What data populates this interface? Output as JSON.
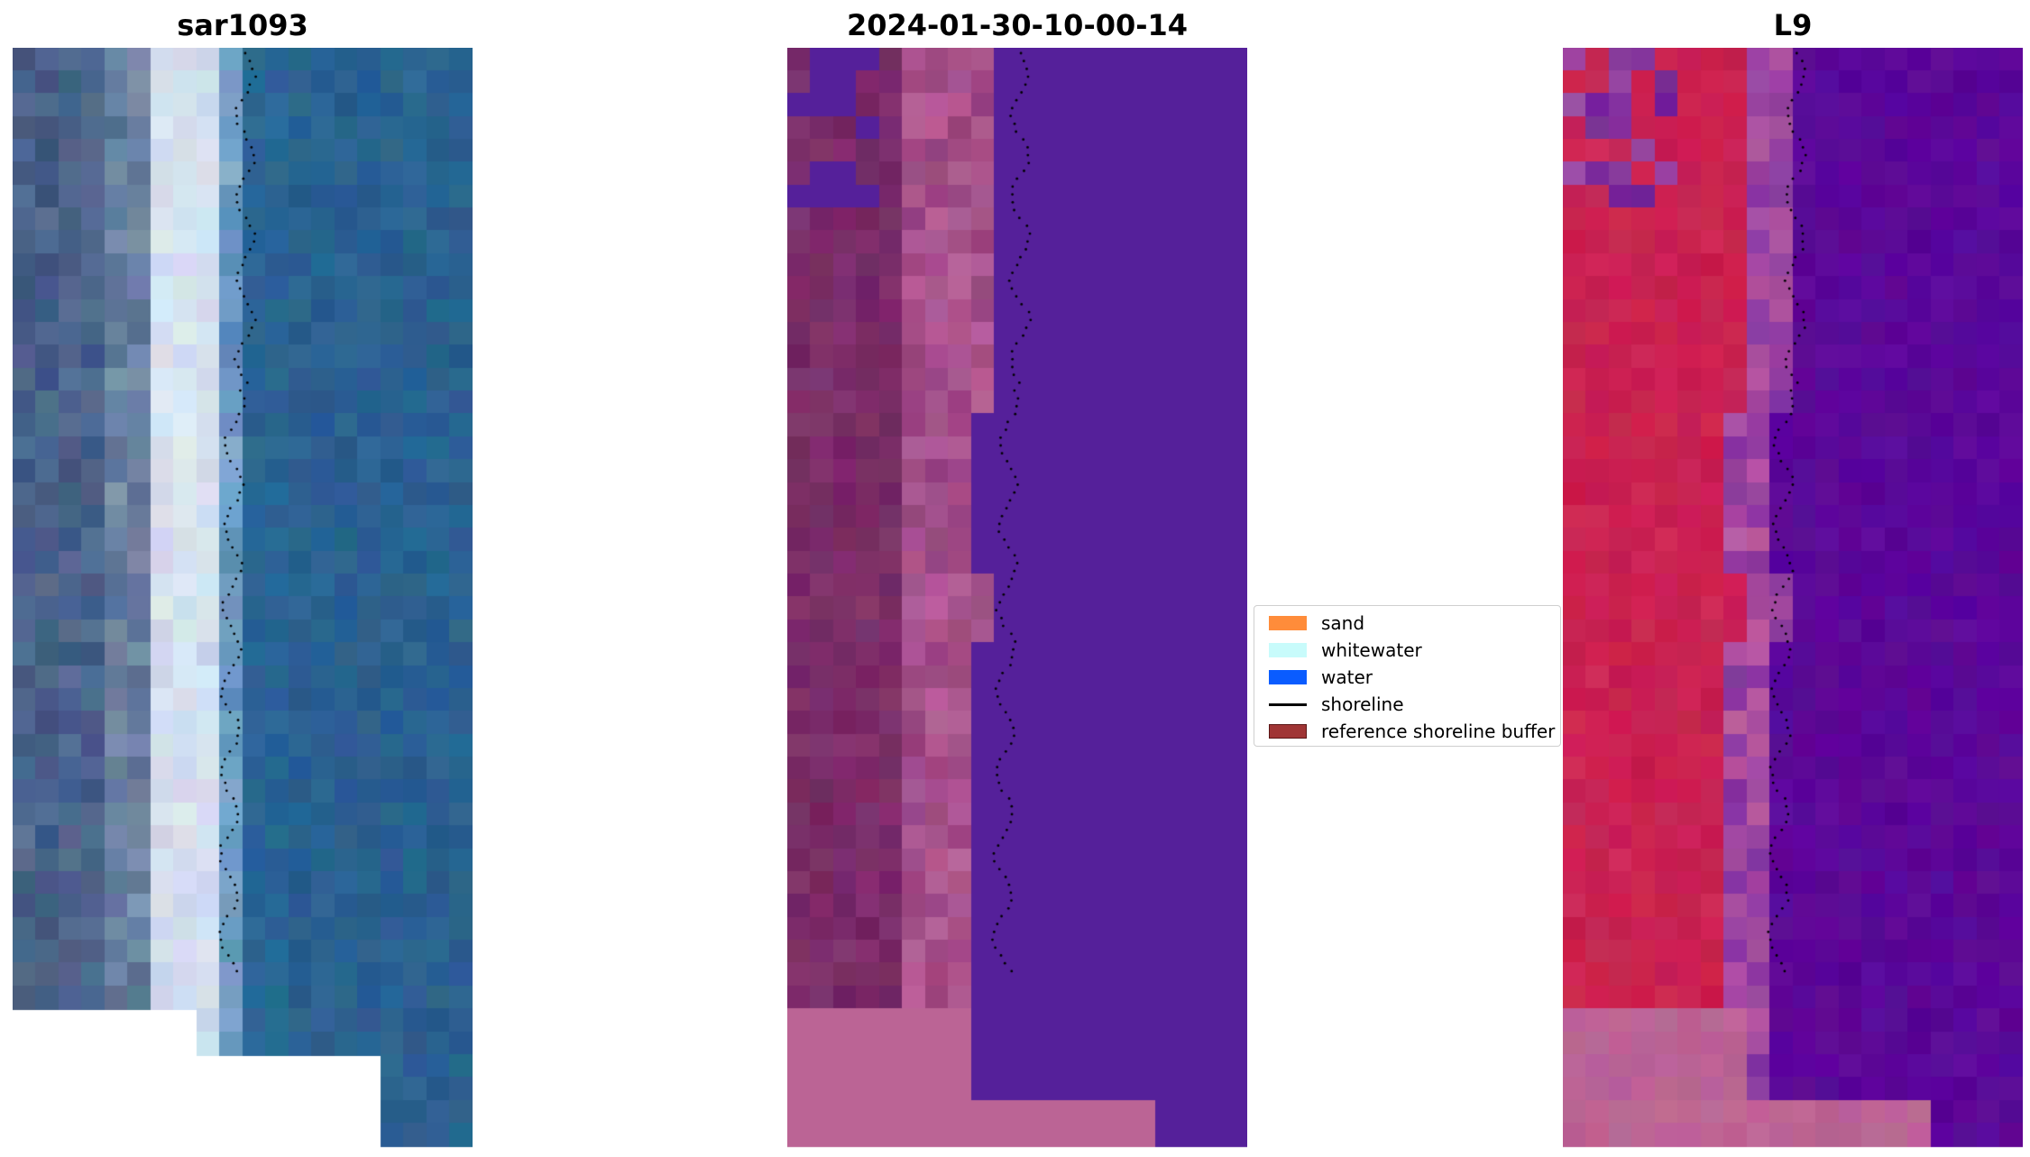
{
  "panels": [
    {
      "title": "sar1093",
      "style": "rgb"
    },
    {
      "title": "2024-01-30-10-00-14",
      "style": "classified"
    },
    {
      "title": "L9",
      "style": "index"
    }
  ],
  "legend": {
    "items": [
      {
        "label": "sand",
        "type": "patch",
        "color": "#ff8c3a"
      },
      {
        "label": "whitewater",
        "type": "patch",
        "color": "#c8fbfb"
      },
      {
        "label": "water",
        "type": "patch",
        "color": "#0a5cff"
      },
      {
        "label": "shoreline",
        "type": "line",
        "color": "#000000"
      },
      {
        "label": "reference shoreline buffer",
        "type": "patch",
        "color": "#a03535"
      }
    ]
  },
  "colors": {
    "rgb_water": "#2a5f8e",
    "rgb_whitewater": "#dce8f2",
    "rgb_land": "#3d5680",
    "classified_sea": "#55209a",
    "classified_land": "#722560",
    "classified_shallow": "#b9609a",
    "index_sea": "#5a0597",
    "index_land": "#c81c4e",
    "index_nodata": "#bb6495",
    "shoreline_points": "#000000"
  }
}
